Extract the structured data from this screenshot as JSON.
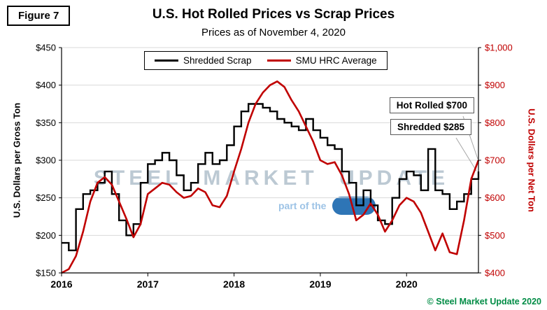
{
  "figure_label": "Figure 7",
  "title": "U.S. Hot Rolled Prices vs Scrap Prices",
  "subtitle": "Prices as of November 4, 2020",
  "colors": {
    "scrap_line": "#000000",
    "hrc_line": "#c00000",
    "right_axis_text": "#c00000",
    "gridline": "#d9d9d9",
    "copyright_text": "#008c45",
    "watermark_text": "#bcc9d3",
    "watermark_blue": "#2e75b6"
  },
  "legend": [
    {
      "label": "Shredded Scrap",
      "color": "#000000"
    },
    {
      "label": "SMU HRC Average",
      "color": "#c00000"
    }
  ],
  "annotations": [
    {
      "label": "Hot Rolled $700",
      "series": "SMU HRC Average",
      "value": 700
    },
    {
      "label": "Shredded $285",
      "series": "Shredded Scrap",
      "value": 285
    }
  ],
  "left_axis": {
    "title": "U.S. Dollars per Gross Ton",
    "min": 150,
    "max": 450,
    "step": 50
  },
  "right_axis": {
    "title": "U.S. Dollars per Net Ton",
    "min": 400,
    "max": 1000,
    "step": 100
  },
  "watermark": {
    "line1": "STEEL MARKET UPDATE",
    "line2": "part of the"
  },
  "copyright": "© Steel Market Update 2020",
  "chart_data": {
    "type": "line",
    "title": "U.S. Hot Rolled Prices vs Scrap Prices",
    "subtitle": "Prices as of November 4, 2020",
    "x_ticks": [
      "2016",
      "2017",
      "2018",
      "2019",
      "2020"
    ],
    "x_tick_indices": [
      0,
      12,
      24,
      36,
      48
    ],
    "left_ylim": [
      150,
      450
    ],
    "right_ylim": [
      400,
      1000
    ],
    "grid": "horizontal",
    "legend_position": "top-center-inside",
    "x": [
      "2016-01",
      "2016-02",
      "2016-03",
      "2016-04",
      "2016-05",
      "2016-06",
      "2016-07",
      "2016-08",
      "2016-09",
      "2016-10",
      "2016-11",
      "2016-12",
      "2017-01",
      "2017-02",
      "2017-03",
      "2017-04",
      "2017-05",
      "2017-06",
      "2017-07",
      "2017-08",
      "2017-09",
      "2017-10",
      "2017-11",
      "2017-12",
      "2018-01",
      "2018-02",
      "2018-03",
      "2018-04",
      "2018-05",
      "2018-06",
      "2018-07",
      "2018-08",
      "2018-09",
      "2018-10",
      "2018-11",
      "2018-12",
      "2019-01",
      "2019-02",
      "2019-03",
      "2019-04",
      "2019-05",
      "2019-06",
      "2019-07",
      "2019-08",
      "2019-09",
      "2019-10",
      "2019-11",
      "2019-12",
      "2020-01",
      "2020-02",
      "2020-03",
      "2020-04",
      "2020-05",
      "2020-06",
      "2020-07",
      "2020-08",
      "2020-09",
      "2020-10",
      "2020-11"
    ],
    "series": [
      {
        "name": "Shredded Scrap",
        "axis": "left",
        "units": "USD per gross ton",
        "color": "#000000",
        "style": "step",
        "values": [
          190,
          180,
          235,
          255,
          260,
          270,
          285,
          255,
          220,
          200,
          215,
          270,
          295,
          300,
          310,
          300,
          280,
          260,
          270,
          295,
          310,
          295,
          300,
          320,
          345,
          365,
          375,
          375,
          370,
          365,
          355,
          350,
          345,
          340,
          355,
          340,
          330,
          320,
          315,
          285,
          270,
          240,
          260,
          240,
          220,
          215,
          250,
          275,
          285,
          280,
          260,
          315,
          260,
          255,
          235,
          245,
          255,
          275,
          285
        ]
      },
      {
        "name": "SMU HRC Average",
        "axis": "right",
        "units": "USD per net ton",
        "color": "#c00000",
        "style": "line",
        "values": [
          400,
          410,
          445,
          510,
          590,
          640,
          655,
          635,
          590,
          545,
          495,
          530,
          610,
          625,
          640,
          635,
          615,
          600,
          605,
          625,
          615,
          580,
          575,
          605,
          670,
          730,
          800,
          850,
          880,
          900,
          910,
          895,
          860,
          830,
          790,
          750,
          700,
          690,
          695,
          660,
          610,
          540,
          555,
          585,
          555,
          510,
          540,
          580,
          600,
          590,
          560,
          510,
          460,
          505,
          455,
          450,
          540,
          650,
          700
        ]
      }
    ]
  }
}
